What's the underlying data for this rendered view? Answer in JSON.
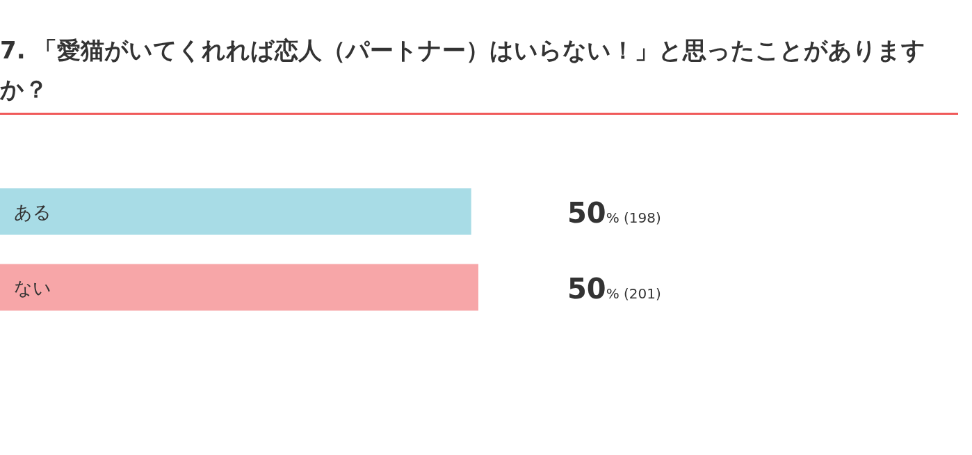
{
  "chart_data": {
    "type": "bar",
    "orientation": "horizontal",
    "title": "7. 「愛猫がいてくれれば恋人（パートナー）はいらない！」と思ったことがありますか？",
    "categories": [
      "ある",
      "ない"
    ],
    "values": [
      198,
      201
    ],
    "colors": [
      "#a8dce6",
      "#f7a6a8"
    ],
    "value_labels": [
      "50% (198)",
      "50% (201)"
    ]
  }
}
